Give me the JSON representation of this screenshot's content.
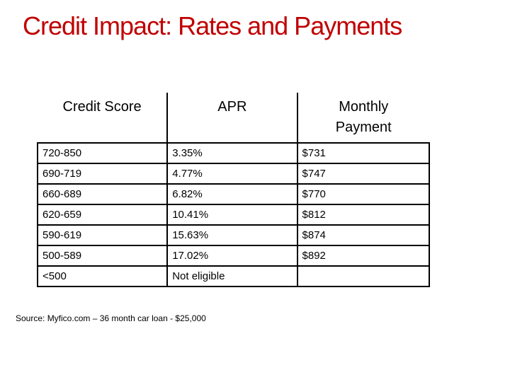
{
  "title": "Credit Impact: Rates and Payments",
  "table": {
    "headers": [
      "Credit Score",
      "APR",
      "Monthly Payment"
    ],
    "rows": [
      [
        "720-850",
        "3.35%",
        "$731"
      ],
      [
        "690-719",
        "4.77%",
        "$747"
      ],
      [
        "660-689",
        "6.82%",
        "$770"
      ],
      [
        "620-659",
        "10.41%",
        "$812"
      ],
      [
        "590-619",
        "15.63%",
        "$874"
      ],
      [
        "500-589",
        "17.02%",
        "$892"
      ],
      [
        "<500",
        "Not eligible",
        ""
      ]
    ]
  },
  "source": "Source: Myfico.com – 36 month car loan - $25,000",
  "colors": {
    "title": "#c00000",
    "border": "#000000",
    "background": "#ffffff"
  }
}
